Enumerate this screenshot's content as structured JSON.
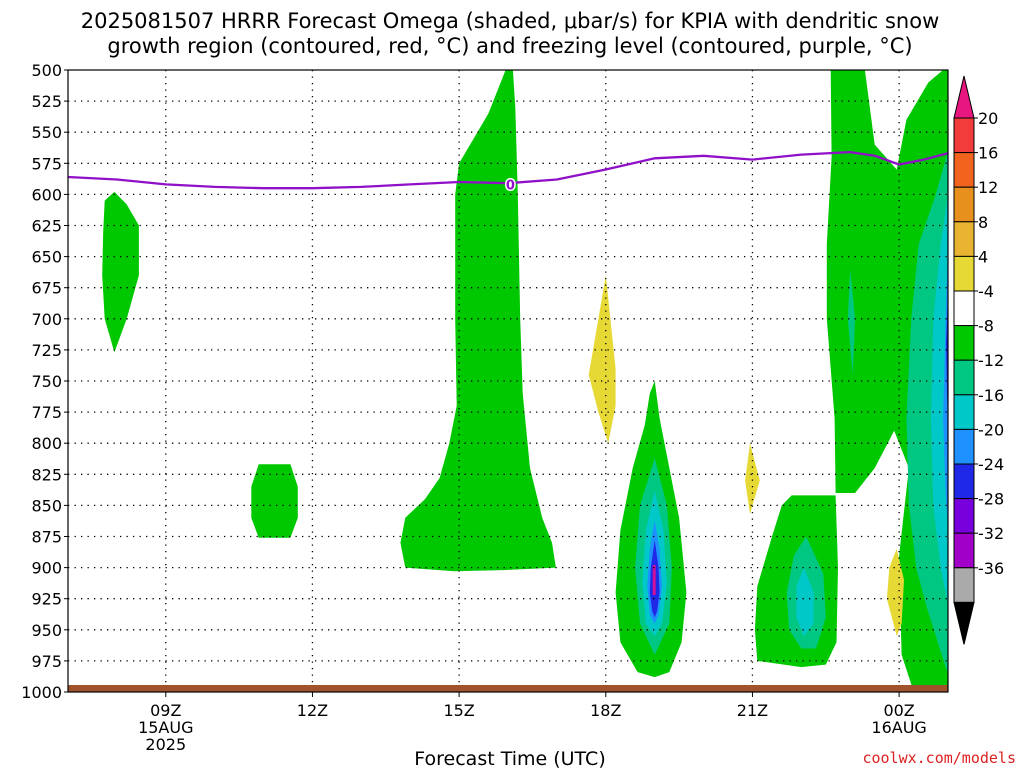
{
  "chart_data": {
    "type": "heatmap",
    "title_lines": [
      "2025081507 HRRR Forecast Omega (shaded, μbar/s) for KPIA with dendritic snow",
      "growth region (contoured, red, °C) and freezing level (contoured, purple, °C)"
    ],
    "xlabel": "Forecast Time (UTC)",
    "credit": "coolwx.com/models",
    "x_unit": "hours after 2025-08-15 07Z",
    "xlim": [
      7,
      25
    ],
    "ylim": [
      1000,
      500
    ],
    "y_ticks": [
      500,
      525,
      550,
      575,
      600,
      625,
      650,
      675,
      700,
      725,
      750,
      775,
      800,
      825,
      850,
      875,
      900,
      925,
      950,
      975,
      1000
    ],
    "x_ticks": [
      {
        "x": 9,
        "lines": [
          "09Z",
          "15AUG",
          "2025"
        ]
      },
      {
        "x": 12,
        "lines": [
          "12Z"
        ]
      },
      {
        "x": 15,
        "lines": [
          "15Z"
        ]
      },
      {
        "x": 18,
        "lines": [
          "18Z"
        ]
      },
      {
        "x": 21,
        "lines": [
          "21Z"
        ]
      },
      {
        "x": 24,
        "lines": [
          "00Z",
          "16AUG"
        ]
      }
    ],
    "grid": true,
    "colorbar": {
      "labels": [
        20,
        16,
        12,
        8,
        4,
        -4,
        -8,
        -12,
        -16,
        -20,
        -24,
        -28,
        -32,
        -36
      ],
      "colors": [
        "#e8177f",
        "#f23c3c",
        "#f2641e",
        "#e8901e",
        "#e8b432",
        "#e6d936",
        "#ffffff",
        "#00c800",
        "#00c882",
        "#00c8c8",
        "#1e90ff",
        "#1e28e6",
        "#7800dc",
        "#a000c8",
        "#aaaaaa",
        "#000000"
      ]
    },
    "freezing_level": {
      "label": "0",
      "x": [
        7,
        8,
        9,
        10,
        11,
        12,
        13,
        14,
        15,
        16,
        17,
        18,
        19,
        20,
        21,
        22,
        23,
        23.5,
        24,
        24.5,
        25
      ],
      "p": [
        586,
        588,
        592,
        594,
        595,
        595,
        594,
        592,
        590,
        591,
        588,
        580,
        571,
        569,
        572,
        568,
        566,
        569,
        576,
        572,
        567
      ]
    },
    "omega_regions": [
      {
        "level": -8,
        "points": [
          [
            7.75,
            605
          ],
          [
            7.95,
            598
          ],
          [
            8.2,
            608
          ],
          [
            8.45,
            625
          ],
          [
            8.45,
            665
          ],
          [
            8.2,
            700
          ],
          [
            7.95,
            727
          ],
          [
            7.75,
            700
          ],
          [
            7.7,
            665
          ],
          [
            7.72,
            630
          ]
        ]
      },
      {
        "level": -8,
        "points": [
          [
            15.95,
            500
          ],
          [
            16.1,
            500
          ],
          [
            16.15,
            530
          ],
          [
            16.2,
            600
          ],
          [
            16.25,
            700
          ],
          [
            16.3,
            760
          ],
          [
            16.45,
            820
          ],
          [
            16.7,
            860
          ],
          [
            16.9,
            880
          ],
          [
            16.98,
            900
          ],
          [
            15.9,
            902
          ],
          [
            14.9,
            903
          ],
          [
            13.9,
            900
          ],
          [
            13.8,
            880
          ],
          [
            13.9,
            860
          ],
          [
            14.3,
            845
          ],
          [
            14.6,
            828
          ],
          [
            14.8,
            800
          ],
          [
            14.95,
            770
          ],
          [
            14.92,
            700
          ],
          [
            14.92,
            600
          ],
          [
            15.0,
            575
          ],
          [
            15.3,
            555
          ],
          [
            15.6,
            535
          ],
          [
            15.8,
            515
          ]
        ]
      },
      {
        "level": -8,
        "points": [
          [
            10.9,
            817
          ],
          [
            11.55,
            817
          ],
          [
            11.7,
            835
          ],
          [
            11.7,
            860
          ],
          [
            11.55,
            876
          ],
          [
            10.9,
            876
          ],
          [
            10.75,
            860
          ],
          [
            10.75,
            835
          ]
        ]
      },
      {
        "level": -8,
        "points": [
          [
            19.0,
            750
          ],
          [
            19.1,
            780
          ],
          [
            19.25,
            810
          ],
          [
            19.5,
            860
          ],
          [
            19.65,
            920
          ],
          [
            19.55,
            960
          ],
          [
            19.3,
            984
          ],
          [
            19.0,
            988
          ],
          [
            18.65,
            984
          ],
          [
            18.3,
            960
          ],
          [
            18.2,
            920
          ],
          [
            18.3,
            870
          ],
          [
            18.55,
            820
          ],
          [
            18.8,
            785
          ],
          [
            18.9,
            760
          ]
        ]
      },
      {
        "level": -12,
        "points": [
          [
            19.0,
            812
          ],
          [
            19.25,
            850
          ],
          [
            19.35,
            900
          ],
          [
            19.3,
            945
          ],
          [
            19.0,
            970
          ],
          [
            18.7,
            945
          ],
          [
            18.6,
            900
          ],
          [
            18.7,
            850
          ]
        ]
      },
      {
        "level": -16,
        "points": [
          [
            19.0,
            838
          ],
          [
            19.18,
            870
          ],
          [
            19.25,
            912
          ],
          [
            19.15,
            945
          ],
          [
            19.0,
            955
          ],
          [
            18.82,
            945
          ],
          [
            18.75,
            912
          ],
          [
            18.82,
            870
          ]
        ]
      },
      {
        "level": -20,
        "points": [
          [
            19.0,
            862
          ],
          [
            19.1,
            885
          ],
          [
            19.15,
            915
          ],
          [
            19.08,
            938
          ],
          [
            19.0,
            945
          ],
          [
            18.9,
            938
          ],
          [
            18.85,
            915
          ],
          [
            18.9,
            885
          ]
        ]
      },
      {
        "level": -24,
        "points": [
          [
            19.0,
            878
          ],
          [
            19.08,
            900
          ],
          [
            19.1,
            920
          ],
          [
            19.05,
            935
          ],
          [
            19.0,
            940
          ],
          [
            18.95,
            935
          ],
          [
            18.9,
            920
          ],
          [
            18.92,
            900
          ]
        ]
      },
      {
        "level": -8,
        "points": [
          [
            21.8,
            842
          ],
          [
            22.7,
            842
          ],
          [
            22.75,
            900
          ],
          [
            22.72,
            960
          ],
          [
            22.5,
            978
          ],
          [
            22.0,
            980
          ],
          [
            21.1,
            975
          ],
          [
            21.05,
            950
          ],
          [
            21.1,
            915
          ],
          [
            21.4,
            875
          ],
          [
            21.6,
            850
          ]
        ]
      },
      {
        "level": -12,
        "points": [
          [
            22.1,
            875
          ],
          [
            22.45,
            905
          ],
          [
            22.5,
            940
          ],
          [
            22.3,
            965
          ],
          [
            22.0,
            965
          ],
          [
            21.75,
            950
          ],
          [
            21.7,
            920
          ],
          [
            21.85,
            890
          ]
        ]
      },
      {
        "level": -16,
        "points": [
          [
            22.05,
            900
          ],
          [
            22.25,
            920
          ],
          [
            22.25,
            945
          ],
          [
            22.05,
            955
          ],
          [
            21.9,
            940
          ],
          [
            21.9,
            915
          ]
        ]
      },
      {
        "level": -8,
        "points": [
          [
            22.6,
            500
          ],
          [
            23.3,
            500
          ],
          [
            23.5,
            560
          ],
          [
            23.95,
            580
          ],
          [
            24.15,
            540
          ],
          [
            24.6,
            510
          ],
          [
            24.9,
            500
          ],
          [
            25,
            500
          ],
          [
            25,
            1000
          ],
          [
            24.3,
            1000
          ],
          [
            24.05,
            970
          ],
          [
            24.0,
            890
          ],
          [
            24.2,
            820
          ],
          [
            23.9,
            790
          ],
          [
            23.5,
            820
          ],
          [
            23.1,
            840
          ],
          [
            22.7,
            840
          ],
          [
            22.68,
            780
          ],
          [
            22.6,
            740
          ],
          [
            22.52,
            700
          ],
          [
            22.52,
            640
          ],
          [
            22.62,
            570
          ]
        ]
      },
      {
        "level": -12,
        "points": [
          [
            25,
            565
          ],
          [
            24.75,
            600
          ],
          [
            24.4,
            640
          ],
          [
            24.25,
            700
          ],
          [
            24.15,
            780
          ],
          [
            24.2,
            850
          ],
          [
            24.35,
            900
          ],
          [
            24.55,
            930
          ],
          [
            24.75,
            955
          ],
          [
            24.95,
            980
          ],
          [
            25,
            985
          ]
        ]
      },
      {
        "level": -16,
        "points": [
          [
            25,
            600
          ],
          [
            24.85,
            640
          ],
          [
            24.7,
            700
          ],
          [
            24.65,
            780
          ],
          [
            24.7,
            850
          ],
          [
            24.85,
            900
          ],
          [
            25,
            930
          ]
        ]
      },
      {
        "level": -20,
        "points": [
          [
            25,
            640
          ],
          [
            24.95,
            700
          ],
          [
            24.9,
            780
          ],
          [
            24.95,
            840
          ],
          [
            25,
            870
          ]
        ]
      },
      {
        "level": -24,
        "points": [
          [
            25,
            680
          ],
          [
            24.96,
            720
          ],
          [
            24.98,
            760
          ],
          [
            25,
            780
          ]
        ]
      },
      {
        "level": -12,
        "points": [
          [
            23.0,
            660
          ],
          [
            23.1,
            700
          ],
          [
            23.05,
            745
          ],
          [
            22.95,
            700
          ]
        ]
      },
      {
        "level": 4,
        "points": [
          [
            18.0,
            665
          ],
          [
            18.2,
            740
          ],
          [
            18.2,
            770
          ],
          [
            18.05,
            800
          ],
          [
            17.85,
            775
          ],
          [
            17.65,
            745
          ],
          [
            17.85,
            700
          ]
        ]
      },
      {
        "level": 4,
        "points": [
          [
            20.95,
            800
          ],
          [
            21.15,
            830
          ],
          [
            20.95,
            857
          ],
          [
            20.85,
            830
          ]
        ]
      },
      {
        "level": 4,
        "points": [
          [
            23.95,
            885
          ],
          [
            24.1,
            910
          ],
          [
            24.05,
            945
          ],
          [
            23.95,
            955
          ],
          [
            23.75,
            925
          ],
          [
            23.8,
            900
          ]
        ]
      }
    ]
  }
}
